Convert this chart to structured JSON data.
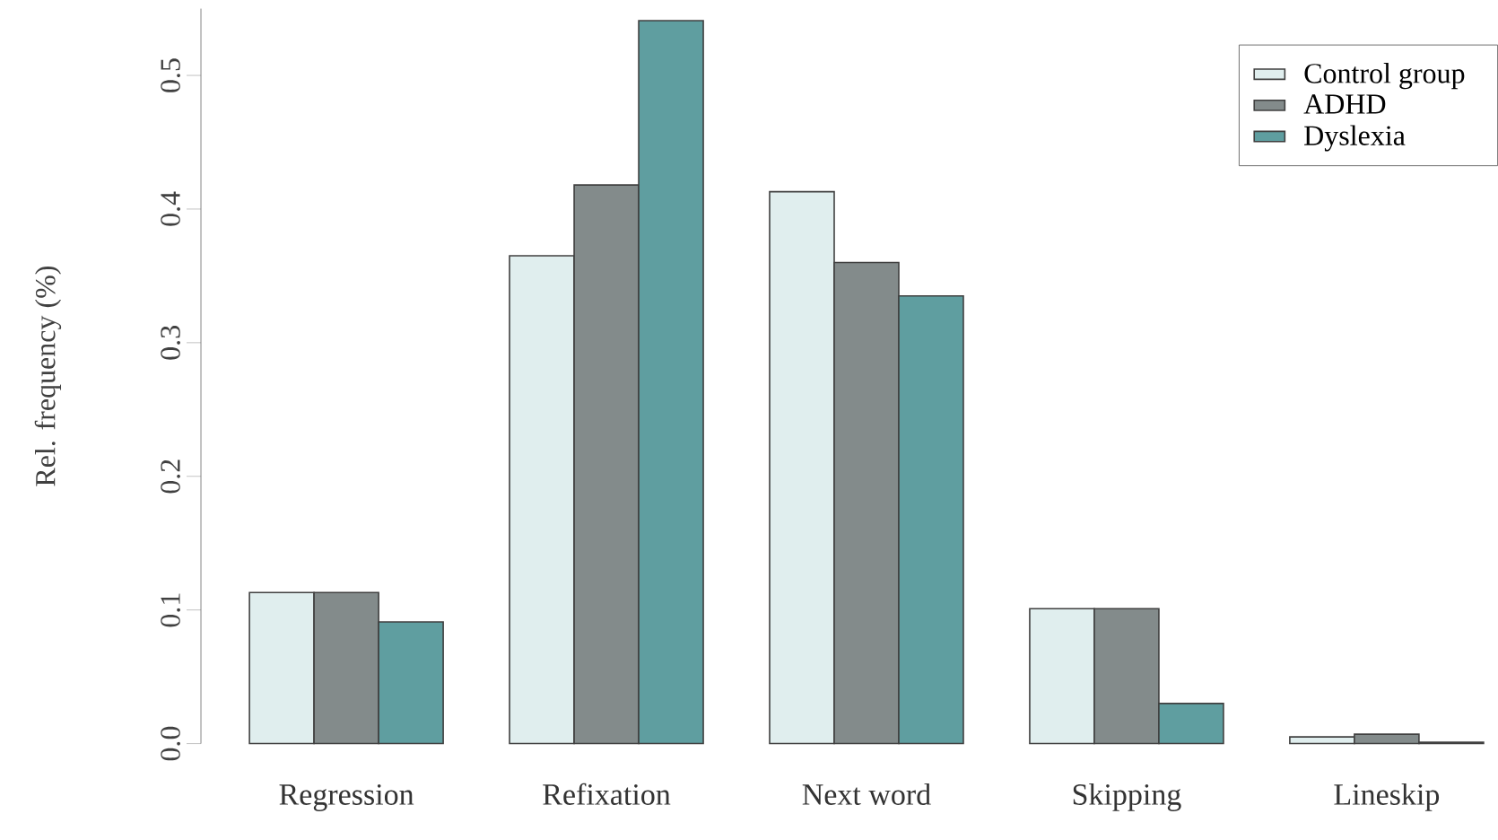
{
  "chart_data": {
    "type": "bar",
    "ylabel": "Rel. frequency (%)",
    "categories": [
      "Regression",
      "Refixation",
      "Next  word",
      "Skipping",
      "Lineskip"
    ],
    "series": [
      {
        "name": "Control group",
        "color": "#e0eeee",
        "values": [
          0.113,
          0.365,
          0.413,
          0.101,
          0.005
        ]
      },
      {
        "name": "ADHD",
        "color": "#838b8b",
        "values": [
          0.113,
          0.418,
          0.36,
          0.101,
          0.007
        ]
      },
      {
        "name": "Dyslexia",
        "color": "#5f9ea0",
        "values": [
          0.091,
          0.541,
          0.335,
          0.03,
          0.001
        ]
      }
    ],
    "ylim": [
      0,
      0.55
    ],
    "yticks": [
      {
        "value": 0,
        "label": "0.0"
      },
      0.1,
      0.2,
      0.3,
      0.4,
      0.5
    ],
    "grid": false,
    "legend": "top right"
  }
}
